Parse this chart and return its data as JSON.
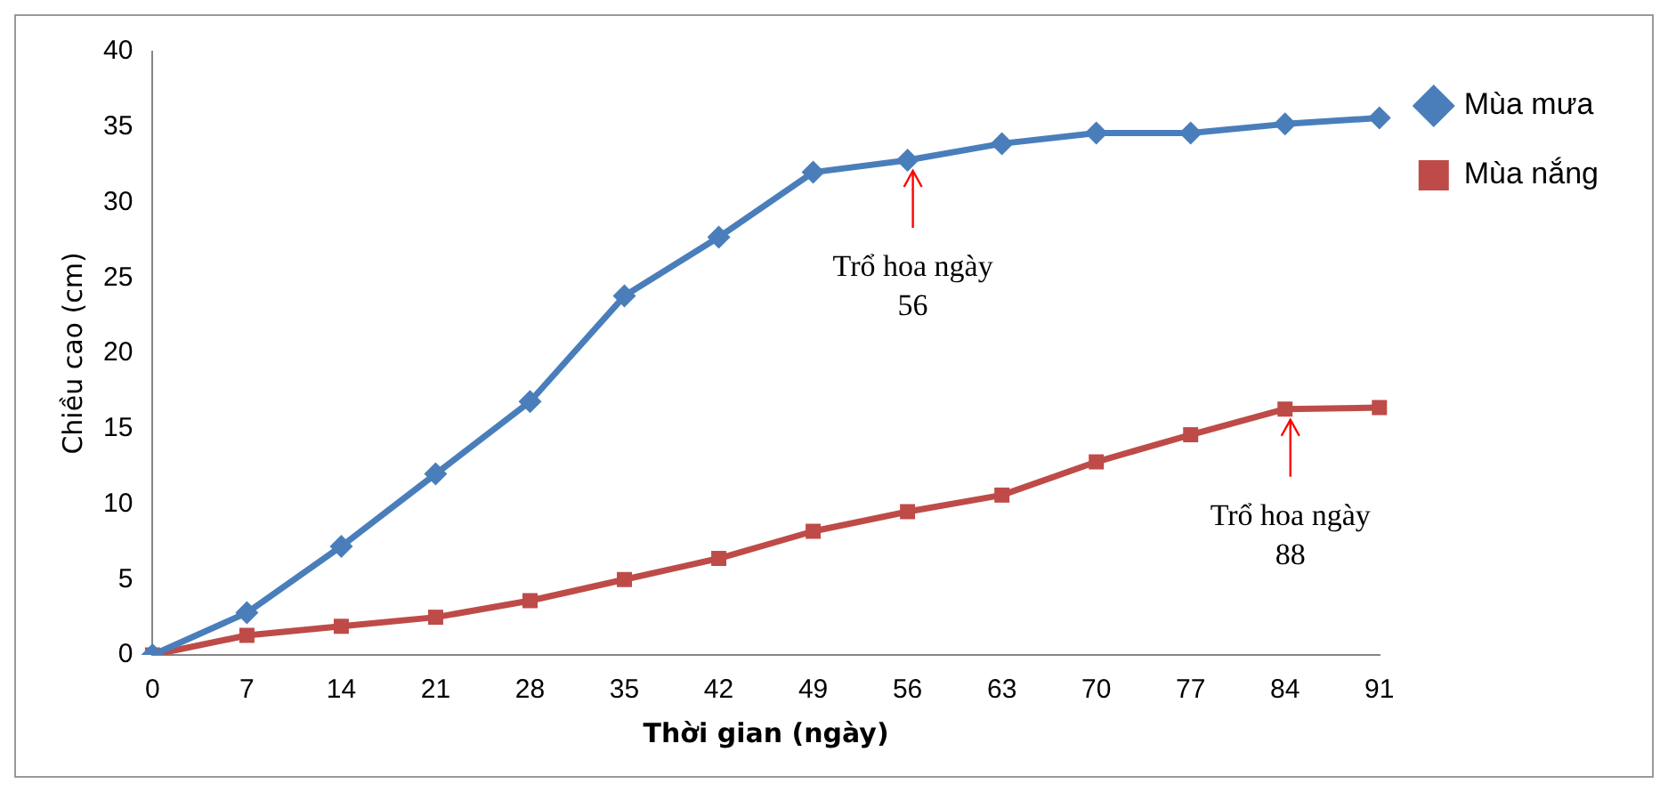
{
  "chart_data": {
    "type": "line",
    "xlabel": "Thời gian (ngày)",
    "ylabel": "Chiều cao (cm)",
    "categories": [
      "0",
      "7",
      "14",
      "21",
      "28",
      "35",
      "42",
      "49",
      "56",
      "63",
      "70",
      "77",
      "84",
      "91"
    ],
    "series": [
      {
        "name": "Mùa mưa",
        "color": "#4a7ebb",
        "marker": "diamond",
        "values": [
          0,
          2.8,
          7.2,
          12.0,
          16.8,
          23.8,
          27.7,
          32.0,
          32.8,
          33.9,
          34.6,
          34.6,
          35.2,
          35.6
        ]
      },
      {
        "name": "Mùa nắng",
        "color": "#be4b48",
        "marker": "square",
        "values": [
          0,
          1.3,
          1.9,
          2.5,
          3.6,
          5.0,
          6.4,
          8.2,
          9.5,
          10.6,
          12.8,
          14.6,
          16.3,
          16.4
        ]
      }
    ],
    "ylim": [
      0,
      40
    ],
    "yticks": [
      0,
      5,
      10,
      15,
      20,
      25,
      30,
      35,
      40
    ],
    "grid": false,
    "legend": "right",
    "annotations": [
      {
        "text": "Trổ hoa ngày\n56",
        "x": "56",
        "y": 32.8
      },
      {
        "text": "Trổ hoa ngày\n88",
        "x": "84",
        "y": 16.3
      }
    ]
  }
}
